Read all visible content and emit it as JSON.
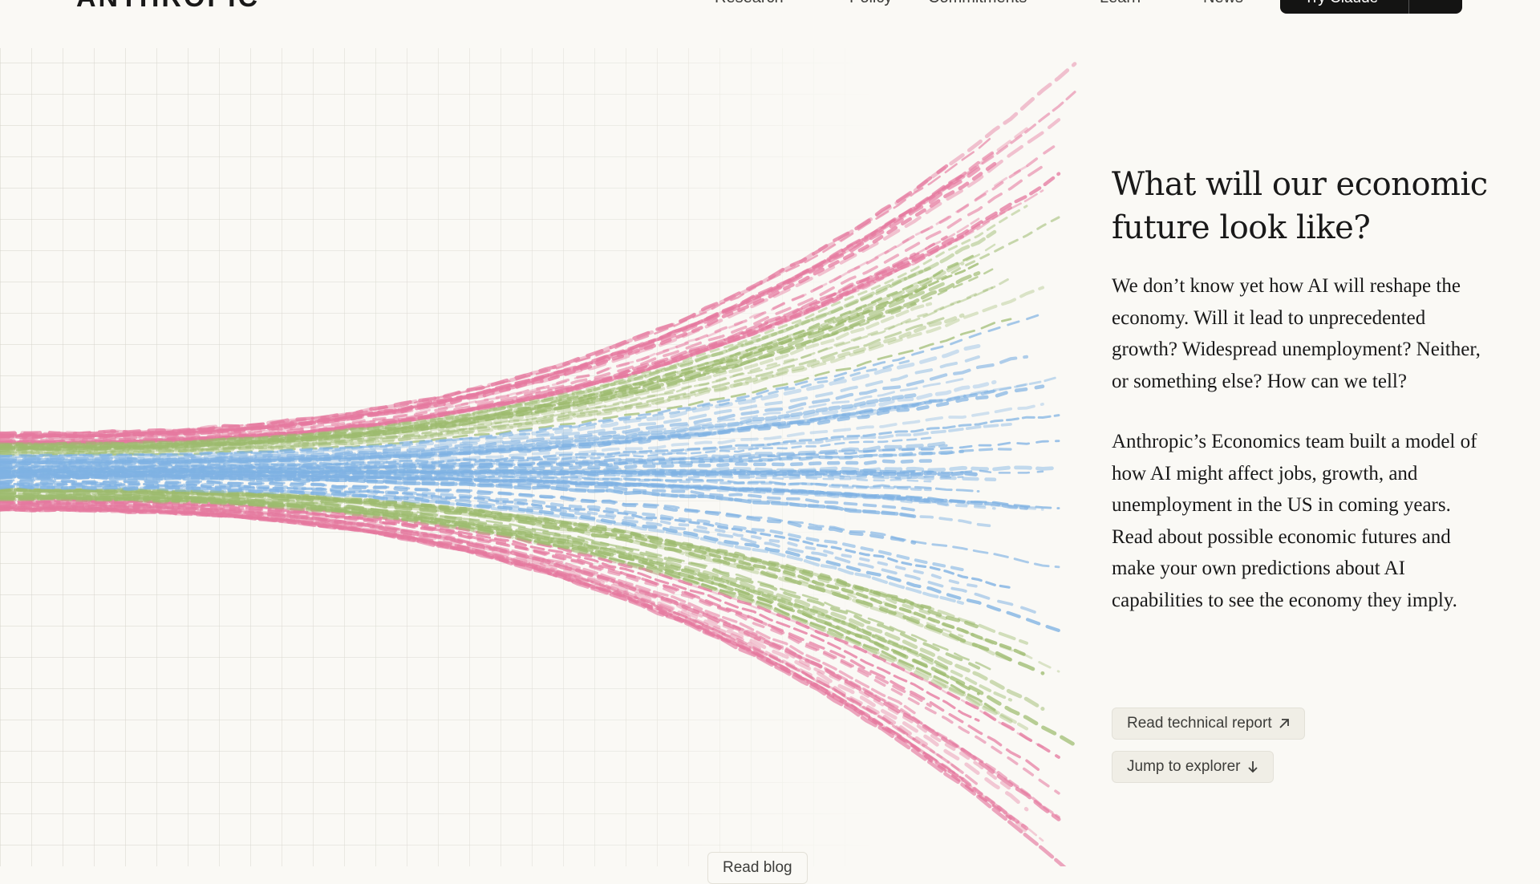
{
  "nav": {
    "logo": "ANTHROPIC",
    "links": [
      "Research",
      "Policy",
      "Commitments",
      "Learn",
      "News"
    ],
    "cta": "Try Claude"
  },
  "hero": {
    "title": "What will our economic future look like?",
    "paragraphs": [
      "We don’t know yet how AI will reshape the economy. Will it lead to unprecedented growth? Widespread unemployment? Neither, or something else? How can we tell?",
      "Anthropic’s Economics team built a model of how AI might affect jobs, growth, and unemployment in the US in coming years. Read about possible economic futures and make your own predictions about AI capabilities to see the economy they imply."
    ],
    "buttons": [
      "Read technical report",
      "Jump to explorer"
    ]
  },
  "read_blog": "Read blog"
}
